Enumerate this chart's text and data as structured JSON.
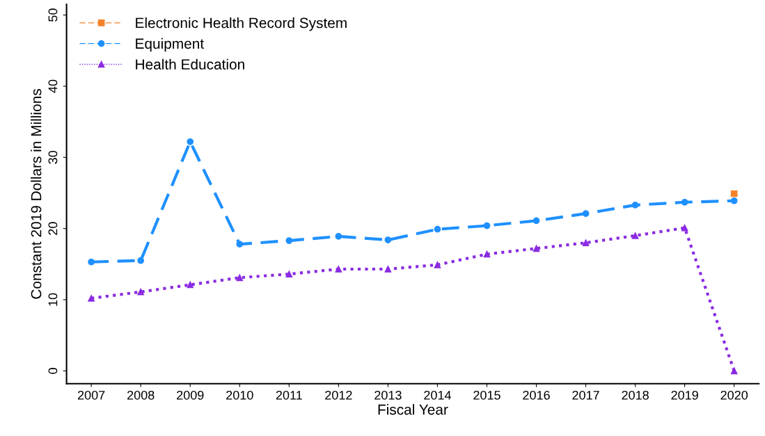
{
  "chart_data": {
    "type": "line",
    "xlabel": "Fiscal Year",
    "ylabel": "Constant 2019 Dollars in Millions",
    "categories": [
      "2007",
      "2008",
      "2009",
      "2010",
      "2011",
      "2012",
      "2013",
      "2014",
      "2015",
      "2016",
      "2017",
      "2018",
      "2019",
      "2020"
    ],
    "series": [
      {
        "name": "Electronic Health Record System",
        "color": "#f5822a",
        "marker": "square",
        "line_style": "dashed",
        "values": [
          null,
          null,
          null,
          null,
          null,
          null,
          null,
          null,
          null,
          null,
          null,
          null,
          null,
          24.9
        ]
      },
      {
        "name": "Equipment",
        "color": "#1e90ff",
        "marker": "circle",
        "line_style": "dashed",
        "values": [
          15.3,
          15.5,
          32.2,
          17.8,
          18.3,
          18.9,
          18.4,
          19.9,
          20.4,
          21.1,
          22.1,
          23.3,
          23.7,
          23.9
        ]
      },
      {
        "name": "Health Education",
        "color": "#8a2be2",
        "marker": "triangle",
        "line_style": "dotted",
        "values": [
          10.2,
          11.1,
          12.1,
          13.1,
          13.6,
          14.3,
          14.3,
          14.9,
          16.4,
          17.2,
          18.0,
          19.0,
          20.1,
          0
        ]
      }
    ],
    "ylim": [
      -1.8,
      51.5
    ],
    "yticks": [
      0,
      10,
      20,
      30,
      40,
      50
    ],
    "grid": false,
    "legend": "top left"
  }
}
